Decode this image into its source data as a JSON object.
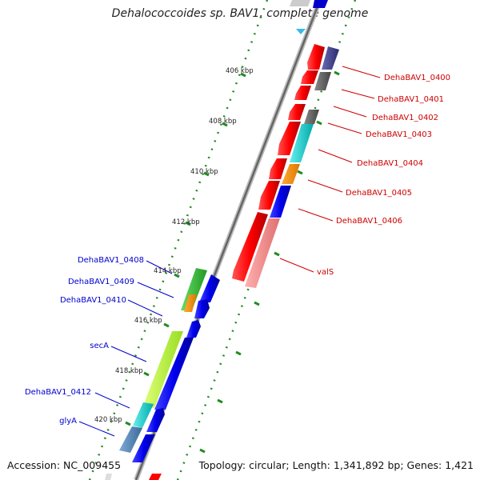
{
  "title": "Dehalococcoides sp. BAV1, complete genome",
  "footer": {
    "accession": "Accession: NC_009455",
    "topology": "Topology: circular; Length: 1,341,892 bp; Genes: 1,421"
  },
  "colors": {
    "right_labels": "#cc0000",
    "left_labels": "#0000cc",
    "ticks": "#228B22",
    "backbone": "#888888"
  },
  "ticks": [
    "406 kbp",
    "408 kbp",
    "410 kbp",
    "412 kbp",
    "414 kbp",
    "416 kbp",
    "418 kbp",
    "420 kbp"
  ],
  "right_labels": [
    "DehaBAV1_0400",
    "DehaBAV1_0401",
    "DehaBAV1_0402",
    "DehaBAV1_0403",
    "DehaBAV1_0404",
    "DehaBAV1_0405",
    "DehaBAV1_0406",
    "valS"
  ],
  "left_labels": [
    "DehaBAV1_0408",
    "DehaBAV1_0409",
    "DehaBAV1_0410",
    "secA",
    "DehaBAV1_0412",
    "glyA"
  ]
}
